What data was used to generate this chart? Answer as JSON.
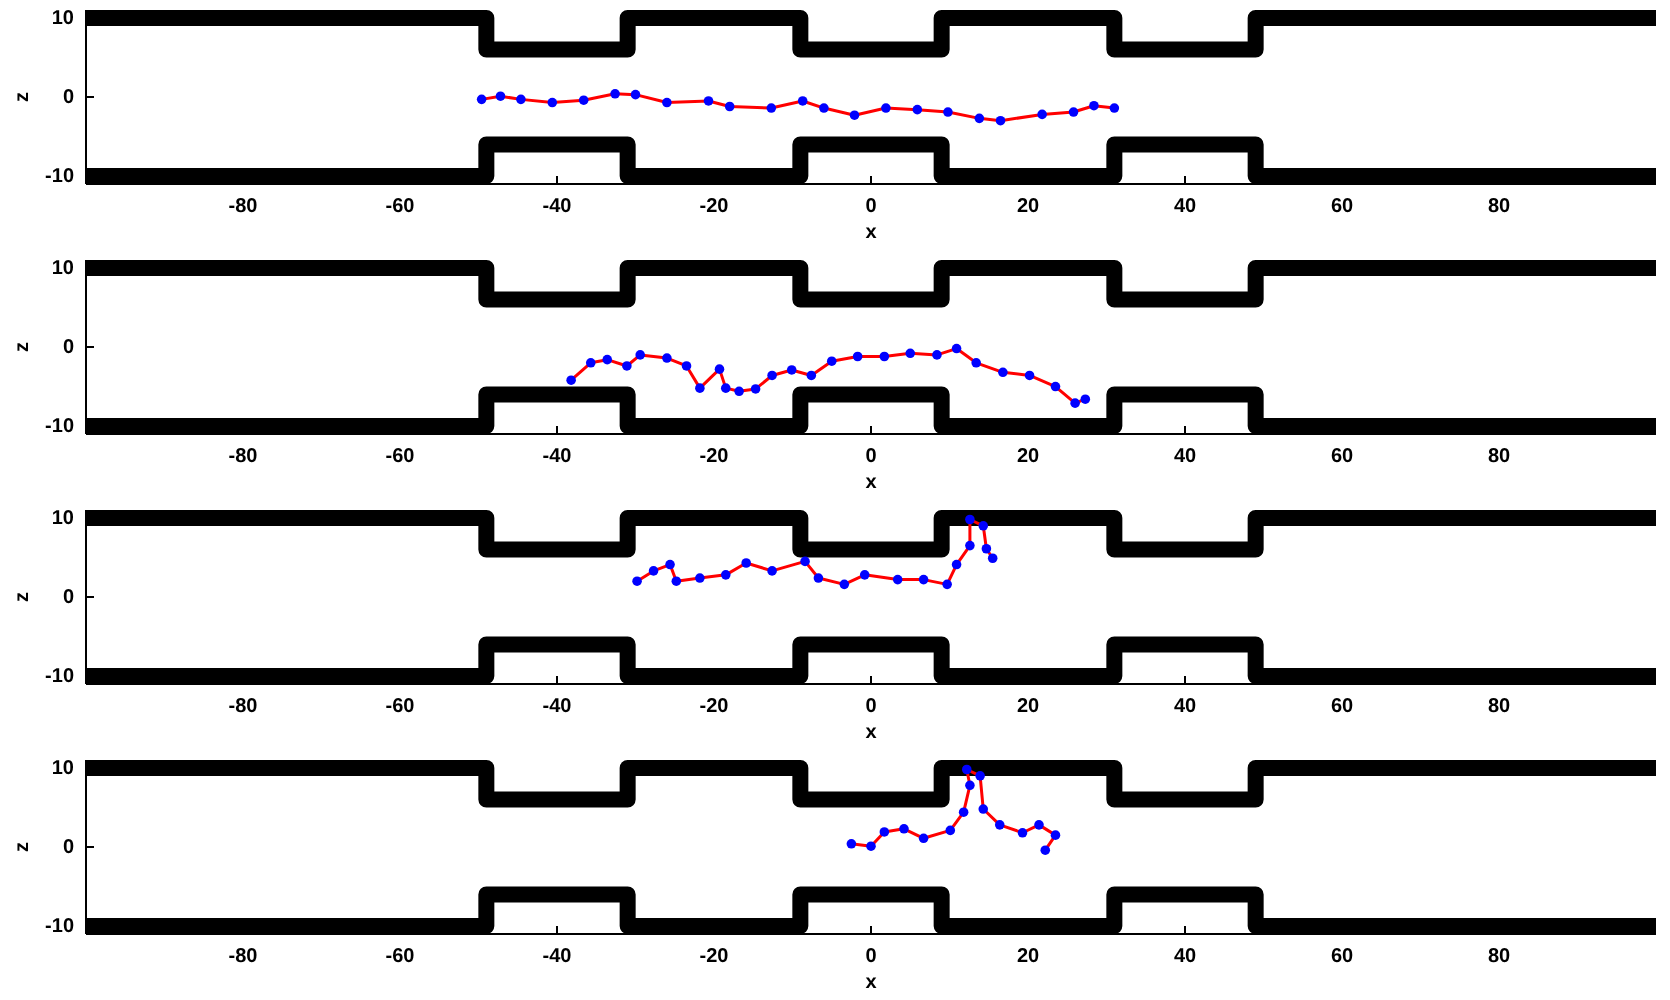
{
  "chart_data": [
    {
      "type": "line",
      "xlabel": "x",
      "ylabel": "z",
      "xlim": [
        -100,
        100
      ],
      "ylim": [
        -11,
        11
      ],
      "xticks": [
        -80,
        -60,
        -40,
        -20,
        0,
        20,
        40,
        60,
        80
      ],
      "yticks": [
        -10,
        0,
        10
      ],
      "series": [
        {
          "type": "step",
          "color": "#000000",
          "x": [
            -100,
            -49,
            -31,
            -9,
            9,
            31,
            49,
            100
          ],
          "values": [
            10,
            6,
            10,
            6,
            10,
            6,
            10,
            10
          ]
        },
        {
          "type": "step",
          "color": "#000000",
          "x": [
            -100,
            -49,
            -31,
            -9,
            9,
            31,
            49,
            100
          ],
          "values": [
            -10,
            -6,
            -10,
            -6,
            -10,
            -6,
            -10,
            -10
          ]
        },
        {
          "color": "#ff0000",
          "x": [
            -49.6,
            -47.2,
            -44.6,
            -40.6,
            -36.6,
            -32.6,
            -30,
            -26,
            -20.7,
            -18,
            -12.7,
            -8.7,
            -6,
            -2.1,
            1.9,
            5.9,
            9.8,
            13.8,
            16.5,
            21.8,
            25.8,
            28.4,
            31
          ],
          "values": [
            -0.3,
            0.1,
            -0.3,
            -0.7,
            -0.4,
            0.4,
            0.3,
            -0.7,
            -0.5,
            -1.2,
            -1.4,
            -0.5,
            -1.4,
            -2.3,
            -1.4,
            -1.6,
            -1.9,
            -2.7,
            -3,
            -2.2,
            -1.9,
            -1.1,
            -1.4
          ]
        },
        {
          "type": "scatter",
          "color": "#0000ff",
          "marker": "circle",
          "x": [
            -49.6,
            -47.2,
            -44.6,
            -40.6,
            -36.6,
            -32.6,
            -30,
            -26,
            -20.7,
            -18,
            -12.7,
            -8.7,
            -6,
            -2.1,
            1.9,
            5.9,
            9.8,
            13.8,
            16.5,
            21.8,
            25.8,
            28.4,
            31
          ],
          "values": [
            -0.3,
            0.1,
            -0.3,
            -0.7,
            -0.4,
            0.4,
            0.3,
            -0.7,
            -0.5,
            -1.2,
            -1.4,
            -0.5,
            -1.4,
            -2.3,
            -1.4,
            -1.6,
            -1.9,
            -2.7,
            -3,
            -2.2,
            -1.9,
            -1.1,
            -1.4
          ]
        }
      ]
    },
    {
      "type": "line",
      "xlabel": "x",
      "ylabel": "z",
      "xlim": [
        -100,
        100
      ],
      "ylim": [
        -11,
        11
      ],
      "xticks": [
        -80,
        -60,
        -40,
        -20,
        0,
        20,
        40,
        60,
        80
      ],
      "yticks": [
        -10,
        0,
        10
      ],
      "series": [
        {
          "type": "step",
          "color": "#000000",
          "x": [
            -100,
            -49,
            -31,
            -9,
            9,
            31,
            49,
            100
          ],
          "values": [
            10,
            6,
            10,
            6,
            10,
            6,
            10,
            10
          ]
        },
        {
          "type": "step",
          "color": "#000000",
          "x": [
            -100,
            -49,
            -31,
            -9,
            9,
            31,
            49,
            100
          ],
          "values": [
            -10,
            -6,
            -10,
            -6,
            -10,
            -6,
            -10,
            -10
          ]
        },
        {
          "color": "#ff0000",
          "x": [
            -38.2,
            -35.7,
            -33.6,
            -31.1,
            -29.4,
            -26,
            -23.5,
            -21.8,
            -19.3,
            -18.5,
            -16.8,
            -14.7,
            -12.6,
            -10.1,
            -7.6,
            -5,
            -1.7,
            1.7,
            5,
            8.4,
            10.9,
            13.4,
            16.8,
            20.2,
            23.5,
            26,
            27.3
          ],
          "values": [
            -4.2,
            -2,
            -1.6,
            -2.4,
            -1,
            -1.4,
            -2.4,
            -5.2,
            -2.8,
            -5.2,
            -5.6,
            -5.3,
            -3.6,
            -2.9,
            -3.6,
            -1.8,
            -1.2,
            -1.2,
            -0.8,
            -1,
            -0.2,
            -2,
            -3.2,
            -3.6,
            -5,
            -7.1,
            -6.6
          ]
        },
        {
          "type": "scatter",
          "color": "#0000ff",
          "marker": "circle",
          "x": [
            -38.2,
            -35.7,
            -33.6,
            -31.1,
            -29.4,
            -26,
            -23.5,
            -21.8,
            -19.3,
            -18.5,
            -16.8,
            -14.7,
            -12.6,
            -10.1,
            -7.6,
            -5,
            -1.7,
            1.7,
            5,
            8.4,
            10.9,
            13.4,
            16.8,
            20.2,
            23.5,
            26,
            27.3
          ],
          "values": [
            -4.2,
            -2,
            -1.6,
            -2.4,
            -1,
            -1.4,
            -2.4,
            -5.2,
            -2.8,
            -5.2,
            -5.6,
            -5.3,
            -3.6,
            -2.9,
            -3.6,
            -1.8,
            -1.2,
            -1.2,
            -0.8,
            -1,
            -0.2,
            -2,
            -3.2,
            -3.6,
            -5,
            -7.1,
            -6.6
          ]
        }
      ]
    },
    {
      "type": "line",
      "xlabel": "x",
      "ylabel": "z",
      "xlim": [
        -100,
        100
      ],
      "ylim": [
        -11,
        11
      ],
      "xticks": [
        -80,
        -60,
        -40,
        -20,
        0,
        20,
        40,
        60,
        80
      ],
      "yticks": [
        -10,
        0,
        10
      ],
      "series": [
        {
          "type": "step",
          "color": "#000000",
          "x": [
            -100,
            -49,
            -31,
            -9,
            9,
            31,
            49,
            100
          ],
          "values": [
            10,
            6,
            10,
            6,
            10,
            6,
            10,
            10
          ]
        },
        {
          "type": "step",
          "color": "#000000",
          "x": [
            -100,
            -49,
            -31,
            -9,
            9,
            31,
            49,
            100
          ],
          "values": [
            -10,
            -6,
            -10,
            -6,
            -10,
            -6,
            -10,
            -10
          ]
        },
        {
          "color": "#ff0000",
          "x": [
            -29.8,
            -27.7,
            -25.6,
            -24.8,
            -21.8,
            -18.5,
            -15.9,
            -12.6,
            -8.4,
            -6.7,
            -3.4,
            -0.8,
            3.4,
            6.7,
            9.7,
            10.9,
            12.6,
            12.6,
            14.3,
            14.7,
            15.5
          ],
          "values": [
            2,
            3.3,
            4.1,
            2,
            2.4,
            2.8,
            4.3,
            3.3,
            4.5,
            2.4,
            1.6,
            2.8,
            2.2,
            2.2,
            1.6,
            4.1,
            6.5,
            9.8,
            9,
            6.1,
            4.9
          ]
        },
        {
          "type": "scatter",
          "color": "#0000ff",
          "marker": "circle",
          "x": [
            -29.8,
            -27.7,
            -25.6,
            -24.8,
            -21.8,
            -18.5,
            -15.9,
            -12.6,
            -8.4,
            -6.7,
            -3.4,
            -0.8,
            3.4,
            6.7,
            9.7,
            10.9,
            12.6,
            12.6,
            14.3,
            14.7,
            15.5
          ],
          "values": [
            2,
            3.3,
            4.1,
            2,
            2.4,
            2.8,
            4.3,
            3.3,
            4.5,
            2.4,
            1.6,
            2.8,
            2.2,
            2.2,
            1.6,
            4.1,
            6.5,
            9.8,
            9,
            6.1,
            4.9
          ]
        }
      ]
    },
    {
      "type": "line",
      "xlabel": "x",
      "ylabel": "z",
      "xlim": [
        -100,
        100
      ],
      "ylim": [
        -11,
        11
      ],
      "xticks": [
        -80,
        -60,
        -40,
        -20,
        0,
        20,
        40,
        60,
        80
      ],
      "yticks": [
        -10,
        0,
        10
      ],
      "series": [
        {
          "type": "step",
          "color": "#000000",
          "x": [
            -100,
            -49,
            -31,
            -9,
            9,
            31,
            49,
            100
          ],
          "values": [
            10,
            6,
            10,
            6,
            10,
            6,
            10,
            10
          ]
        },
        {
          "type": "step",
          "color": "#000000",
          "x": [
            -100,
            -49,
            -31,
            -9,
            9,
            31,
            49,
            100
          ],
          "values": [
            -10,
            -6,
            -10,
            -6,
            -10,
            -6,
            -10,
            -10
          ]
        },
        {
          "color": "#ff0000",
          "x": [
            -2.5,
            0,
            1.7,
            4.2,
            6.7,
            10.1,
            11.8,
            12.6,
            12.2,
            13.9,
            14.3,
            16.4,
            19.3,
            21.4,
            23.5,
            22.2
          ],
          "values": [
            0.4,
            0.1,
            1.9,
            2.3,
            1.1,
            2.1,
            4.4,
            7.8,
            9.8,
            9,
            4.8,
            2.8,
            1.8,
            2.8,
            1.5,
            -0.4
          ]
        },
        {
          "type": "scatter",
          "color": "#0000ff",
          "marker": "circle",
          "x": [
            -2.5,
            0,
            1.7,
            4.2,
            6.7,
            10.1,
            11.8,
            12.6,
            12.2,
            13.9,
            14.3,
            16.4,
            19.3,
            21.4,
            23.5,
            22.2
          ],
          "values": [
            0.4,
            0.1,
            1.9,
            2.3,
            1.1,
            2.1,
            4.4,
            7.8,
            9.8,
            9,
            4.8,
            2.8,
            1.8,
            2.8,
            1.5,
            -0.4
          ]
        }
      ]
    }
  ]
}
